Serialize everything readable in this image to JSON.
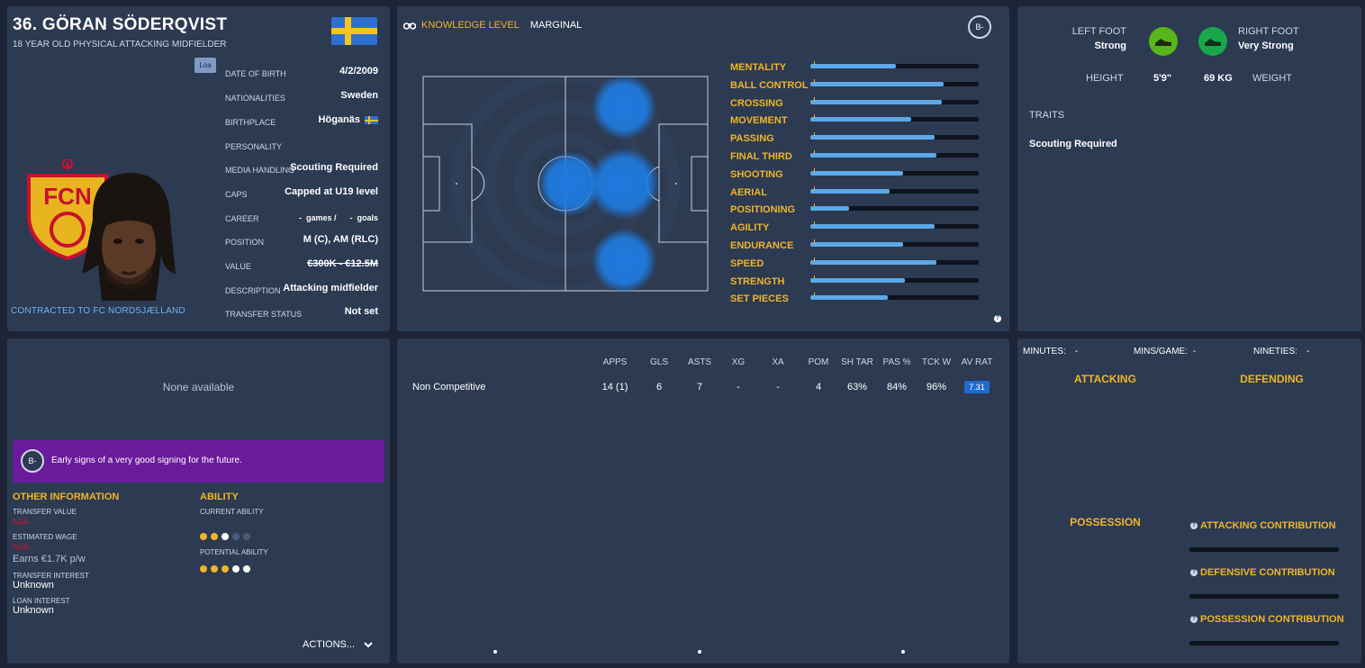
{
  "player": {
    "name": "36. GÖRAN SÖDERQVIST",
    "subtitle": "18 YEAR OLD PHYSICAL ATTACKING MIDFIELDER",
    "loan_badge": "Loa",
    "contract": "CONTRACTED TO FC NORDSJÆLLAND",
    "crest_text": "FCN"
  },
  "profile": [
    {
      "key": "DATE OF BIRTH",
      "value": "4/2/2009"
    },
    {
      "key": "NATIONALITIES",
      "value": "Sweden"
    },
    {
      "key": "BIRTHPLACE",
      "value": "Höganäs"
    },
    {
      "key": "PERSONALITY",
      "value": ""
    },
    {
      "key": "MEDIA HANDLING",
      "value": "Scouting Required"
    },
    {
      "key": "CAPS",
      "value": "Capped at U19 level"
    },
    {
      "key": "CAREER",
      "value": "-  games /      -  goals"
    },
    {
      "key": "POSITION",
      "value": "M (C), AM (RLC)"
    },
    {
      "key": "VALUE",
      "value": "€300K - €12.5M"
    },
    {
      "key": "DESCRIPTION",
      "value": "Attacking midfielder"
    },
    {
      "key": "TRANSFER STATUS",
      "value": "Not set"
    }
  ],
  "knowledge": {
    "label": "KNOWLEDGE LEVEL",
    "value": "MARGINAL",
    "grade": "B-"
  },
  "attributes": [
    {
      "name": "MENTALITY",
      "value": 0.51
    },
    {
      "name": "BALL CONTROL",
      "value": 0.79
    },
    {
      "name": "CROSSING",
      "value": 0.78
    },
    {
      "name": "MOVEMENT",
      "value": 0.6
    },
    {
      "name": "PASSING",
      "value": 0.74
    },
    {
      "name": "FINAL THIRD",
      "value": 0.75
    },
    {
      "name": "SHOOTING",
      "value": 0.55
    },
    {
      "name": "AERIAL",
      "value": 0.47
    },
    {
      "name": "POSITIONING",
      "value": 0.23
    },
    {
      "name": "AGILITY",
      "value": 0.74
    },
    {
      "name": "ENDURANCE",
      "value": 0.55
    },
    {
      "name": "SPEED",
      "value": 0.75
    },
    {
      "name": "STRENGTH",
      "value": 0.56
    },
    {
      "name": "SET PIECES",
      "value": 0.46
    }
  ],
  "foot": {
    "left_label": "LEFT FOOT",
    "left_value": "Strong",
    "right_label": "RIGHT FOOT",
    "right_value": "Very Strong",
    "height_label": "HEIGHT",
    "height_value": "5'9\"",
    "weight_value": "69 KG",
    "weight_label": "WEIGHT",
    "traits_label": "TRAITS",
    "traits_value": "Scouting Required",
    "left_color": "#58b51b",
    "right_color": "#18a84a"
  },
  "info": {
    "none_available": "None available",
    "grade": "B-",
    "banner": "Early signs of a very good signing for the future.",
    "other_title": "OTHER INFORMATION",
    "transfer_value_label": "TRANSFER VALUE",
    "transfer_value": "N/A",
    "wage_label": "ESTIMATED WAGE",
    "wage": "N/A",
    "earns": "Earns €1.7K p/w",
    "transfer_interest_label": "TRANSFER INTEREST",
    "transfer_interest": "Unknown",
    "loan_interest_label": "LOAN INTEREST",
    "loan_interest": "Unknown",
    "ability_title": "ABILITY",
    "ca_label": "CURRENT ABILITY",
    "pa_label": "POTENTIAL ABILITY",
    "ca_dots": [
      "gold",
      "gold",
      "white",
      "dim",
      "dim"
    ],
    "pa_dots": [
      "gold",
      "gold",
      "gold",
      "white",
      "white"
    ],
    "actions": "ACTIONS..."
  },
  "stats": {
    "headers": [
      "APPS",
      "GLS",
      "ASTS",
      "XG",
      "XA",
      "POM",
      "SH TAR",
      "PAS %",
      "TCK W",
      "AV RAT"
    ],
    "row_label": "Non Competitive",
    "values": [
      "14 (1)",
      "6",
      "7",
      "-",
      "-",
      "4",
      "63%",
      "84%",
      "96%",
      "7.31"
    ]
  },
  "contrib": {
    "minutes_label": "MINUTES:",
    "minutes": "-",
    "mins_game_label": "MINS/GAME:",
    "mins_game": "-",
    "nineties_label": "NINETIES:",
    "nineties": "-",
    "attacking": "ATTACKING",
    "defending": "DEFENDING",
    "possession": "POSSESSION",
    "attacking_contribution": "ATTACKING CONTRIBUTION",
    "defensive_contribution": "DEFENSIVE CONTRIBUTION",
    "possession_contribution": "POSSESSION CONTRIBUTION"
  }
}
